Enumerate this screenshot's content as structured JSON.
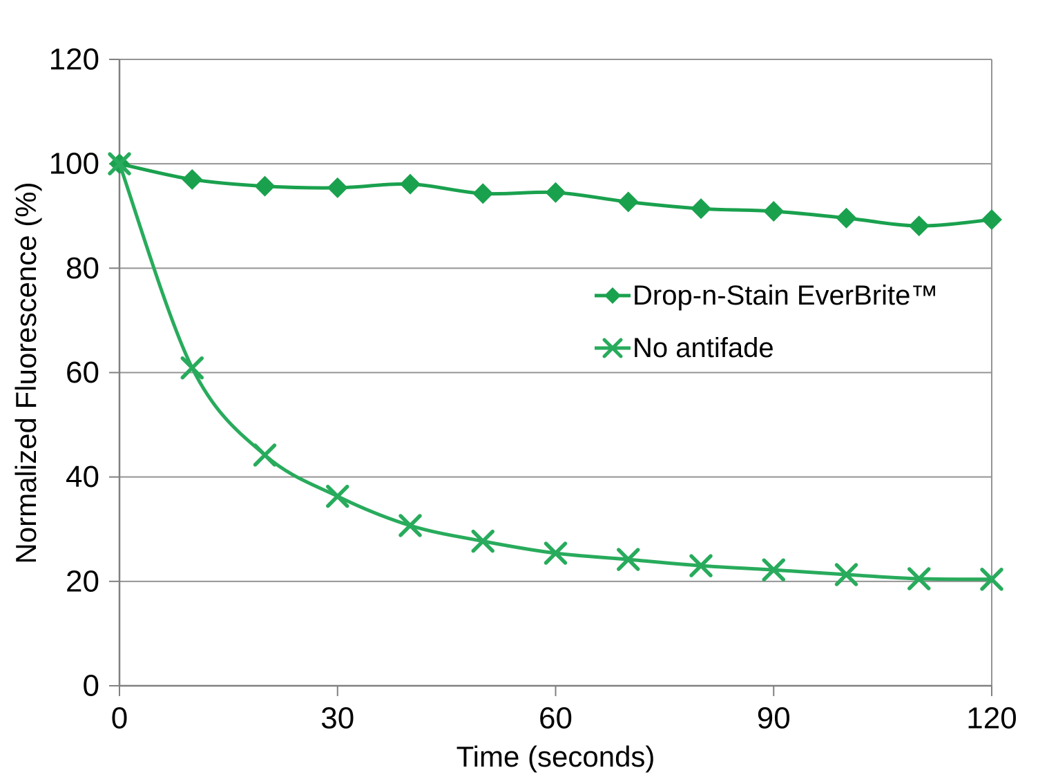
{
  "chart_data": {
    "type": "line",
    "title": "",
    "xlabel": "Time (seconds)",
    "ylabel": "Normalized Fluorescence (%)",
    "x": [
      0,
      10,
      20,
      30,
      40,
      50,
      60,
      70,
      80,
      90,
      100,
      110,
      120
    ],
    "series": [
      {
        "name": "Drop-n-Stain EverBrite™",
        "marker": "diamond",
        "color": "#1aa14e",
        "values": [
          100,
          97,
          95.7,
          95.4,
          96.1,
          94.3,
          94.5,
          92.7,
          91.4,
          90.9,
          89.6,
          88.1,
          89.3
        ]
      },
      {
        "name": "No antifade",
        "marker": "x",
        "color": "#28ab5c",
        "values": [
          100,
          60.9,
          44.2,
          36.3,
          30.7,
          27.7,
          25.4,
          24.2,
          23.0,
          22.2,
          21.3,
          20.5,
          20.4
        ]
      }
    ],
    "xlim": [
      0,
      120
    ],
    "ylim": [
      0,
      120
    ],
    "xticks": [
      0,
      30,
      60,
      90,
      120
    ],
    "yticks": [
      0,
      20,
      40,
      60,
      80,
      100,
      120
    ],
    "grid": "horizontal",
    "smooth": true,
    "legend_position": "inside-right",
    "colors": {
      "gridline": "#949494",
      "axis": "#808080",
      "text": "#000000",
      "background": "#ffffff"
    }
  }
}
